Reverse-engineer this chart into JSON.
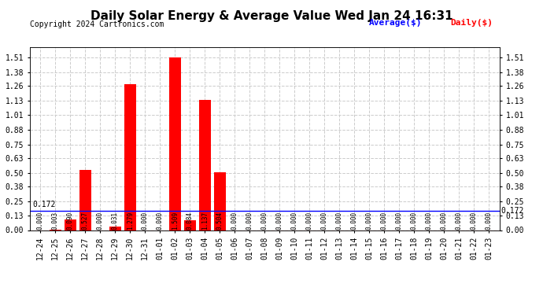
{
  "title": "Daily Solar Energy & Average Value Wed Jan 24 16:31",
  "copyright": "Copyright 2024 Cartronics.com",
  "categories": [
    "12-24",
    "12-25",
    "12-26",
    "12-27",
    "12-28",
    "12-29",
    "12-30",
    "12-31",
    "01-01",
    "01-02",
    "01-03",
    "01-04",
    "01-05",
    "01-06",
    "01-07",
    "01-08",
    "01-09",
    "01-10",
    "01-11",
    "01-12",
    "01-13",
    "01-14",
    "01-15",
    "01-16",
    "01-17",
    "01-18",
    "01-19",
    "01-20",
    "01-21",
    "01-22",
    "01-23"
  ],
  "daily_values": [
    0.0,
    0.003,
    0.09,
    0.527,
    0.0,
    0.031,
    1.279,
    0.0,
    0.0,
    1.509,
    0.084,
    1.137,
    0.504,
    0.0,
    0.0,
    0.0,
    0.0,
    0.0,
    0.0,
    0.0,
    0.0,
    0.0,
    0.0,
    0.0,
    0.0,
    0.0,
    0.0,
    0.0,
    0.0,
    0.0,
    0.0
  ],
  "average_value": 0.172,
  "ylim": [
    0.0,
    1.6
  ],
  "yticks": [
    0.0,
    0.13,
    0.25,
    0.38,
    0.5,
    0.63,
    0.75,
    0.88,
    1.01,
    1.13,
    1.26,
    1.38,
    1.51
  ],
  "bar_color": "#ff0000",
  "avg_line_color": "#0000ff",
  "daily_line_color": "#ff0000",
  "background_color": "#ffffff",
  "grid_color": "#cccccc",
  "title_fontsize": 11,
  "tick_fontsize": 7,
  "copyright_fontsize": 7,
  "legend_fontsize": 8,
  "avg_label": "Average($)",
  "daily_label": "Daily($)"
}
